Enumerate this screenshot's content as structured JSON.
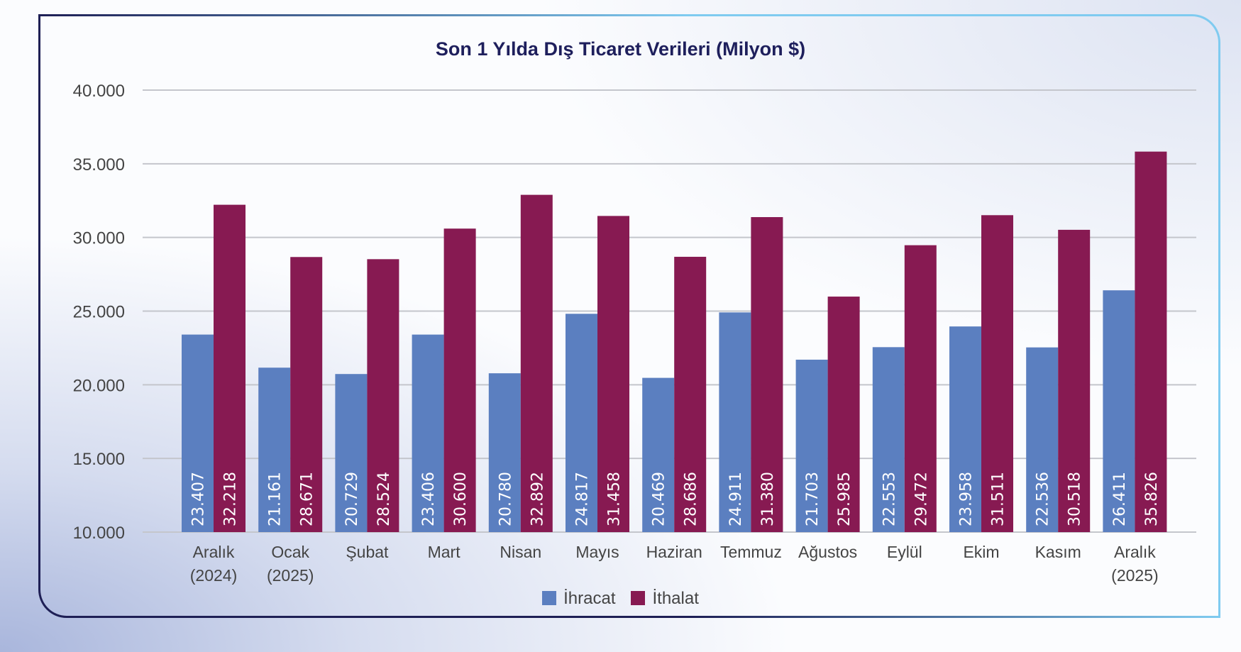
{
  "chart_data": {
    "type": "bar",
    "title": "Son 1 Yılda Dış Ticaret Verileri (Milyon $)",
    "categories": [
      [
        "Aralık",
        "(2024)"
      ],
      [
        "Ocak",
        "(2025)"
      ],
      [
        "Şubat",
        ""
      ],
      [
        "Mart",
        ""
      ],
      [
        "Nisan",
        ""
      ],
      [
        "Mayıs",
        ""
      ],
      [
        "Haziran",
        ""
      ],
      [
        "Temmuz",
        ""
      ],
      [
        "Ağustos",
        ""
      ],
      [
        "Eylül",
        ""
      ],
      [
        "Ekim",
        ""
      ],
      [
        "Kasım",
        ""
      ],
      [
        "Aralık",
        "(2025)"
      ]
    ],
    "series": [
      {
        "name": "İhracat",
        "color": "#5b7fc0",
        "values": [
          23407,
          21161,
          20729,
          23406,
          20780,
          24817,
          20469,
          24911,
          21703,
          22553,
          23958,
          22536,
          26411
        ],
        "labels": [
          "23.407",
          "21.161",
          "20.729",
          "23.406",
          "20.780",
          "24.817",
          "20.469",
          "24.911",
          "21.703",
          "22.553",
          "23.958",
          "22.536",
          "26.411"
        ]
      },
      {
        "name": "İthalat",
        "color": "#871a52",
        "values": [
          32218,
          28671,
          28524,
          30600,
          32892,
          31458,
          28686,
          31380,
          25985,
          29472,
          31511,
          30518,
          35826
        ],
        "labels": [
          "32.218",
          "28.671",
          "28.524",
          "30.600",
          "32.892",
          "31.458",
          "28.686",
          "31.380",
          "25.985",
          "29.472",
          "31.511",
          "30.518",
          "35.826"
        ]
      }
    ],
    "ylim": [
      10000,
      40000
    ],
    "yticks": [
      10000,
      15000,
      20000,
      25000,
      30000,
      35000,
      40000
    ],
    "ytick_labels": [
      "10.000",
      "15.000",
      "20.000",
      "25.000",
      "30.000",
      "35.000",
      "40.000"
    ],
    "grid": true,
    "legend": "bottom"
  }
}
